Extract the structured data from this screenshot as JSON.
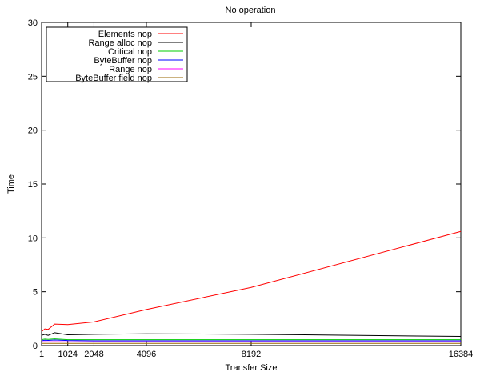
{
  "chart_data": {
    "type": "line",
    "title": "No operation",
    "xlabel": "Transfer Size",
    "ylabel": "Time",
    "xlim": [
      1,
      16384
    ],
    "ylim": [
      0,
      30
    ],
    "xticks": [
      1,
      1024,
      2048,
      4096,
      8192,
      16384
    ],
    "yticks": [
      0,
      5,
      10,
      15,
      20,
      25,
      30
    ],
    "grid": false,
    "legend_position": "top-left",
    "series": [
      {
        "name": "Elements nop",
        "color": "#ff0000",
        "x": [
          1,
          128,
          256,
          512,
          1024,
          2048,
          4096,
          8192,
          16384
        ],
        "y": [
          1.3,
          1.55,
          1.5,
          2.0,
          1.95,
          2.2,
          3.35,
          5.4,
          10.6
        ]
      },
      {
        "name": "Range alloc nop",
        "color": "#000000",
        "x": [
          1,
          128,
          256,
          512,
          1024,
          2048,
          4096,
          8192,
          16384
        ],
        "y": [
          0.95,
          1.05,
          0.95,
          1.2,
          1.0,
          1.05,
          1.1,
          1.05,
          0.85
        ]
      },
      {
        "name": "Critical nop",
        "color": "#00cc00",
        "x": [
          1,
          128,
          256,
          512,
          1024,
          2048,
          4096,
          8192,
          16384
        ],
        "y": [
          0.55,
          0.6,
          0.58,
          0.62,
          0.55,
          0.55,
          0.55,
          0.55,
          0.55
        ]
      },
      {
        "name": "ByteBuffer nop",
        "color": "#0000ff",
        "x": [
          1,
          128,
          256,
          512,
          1024,
          2048,
          4096,
          8192,
          16384
        ],
        "y": [
          0.45,
          0.5,
          0.48,
          0.52,
          0.47,
          0.45,
          0.45,
          0.45,
          0.45
        ]
      },
      {
        "name": "Range nop",
        "color": "#ff00ff",
        "x": [
          1,
          128,
          256,
          512,
          1024,
          2048,
          4096,
          8192,
          16384
        ],
        "y": [
          0.35,
          0.36,
          0.35,
          0.36,
          0.35,
          0.35,
          0.35,
          0.35,
          0.35
        ]
      },
      {
        "name": "ByteBuffer field nop",
        "color": "#996600",
        "x": [
          1,
          128,
          256,
          512,
          1024,
          2048,
          4096,
          8192,
          16384
        ],
        "y": [
          0.2,
          0.2,
          0.2,
          0.2,
          0.2,
          0.2,
          0.2,
          0.2,
          0.2
        ]
      }
    ]
  }
}
